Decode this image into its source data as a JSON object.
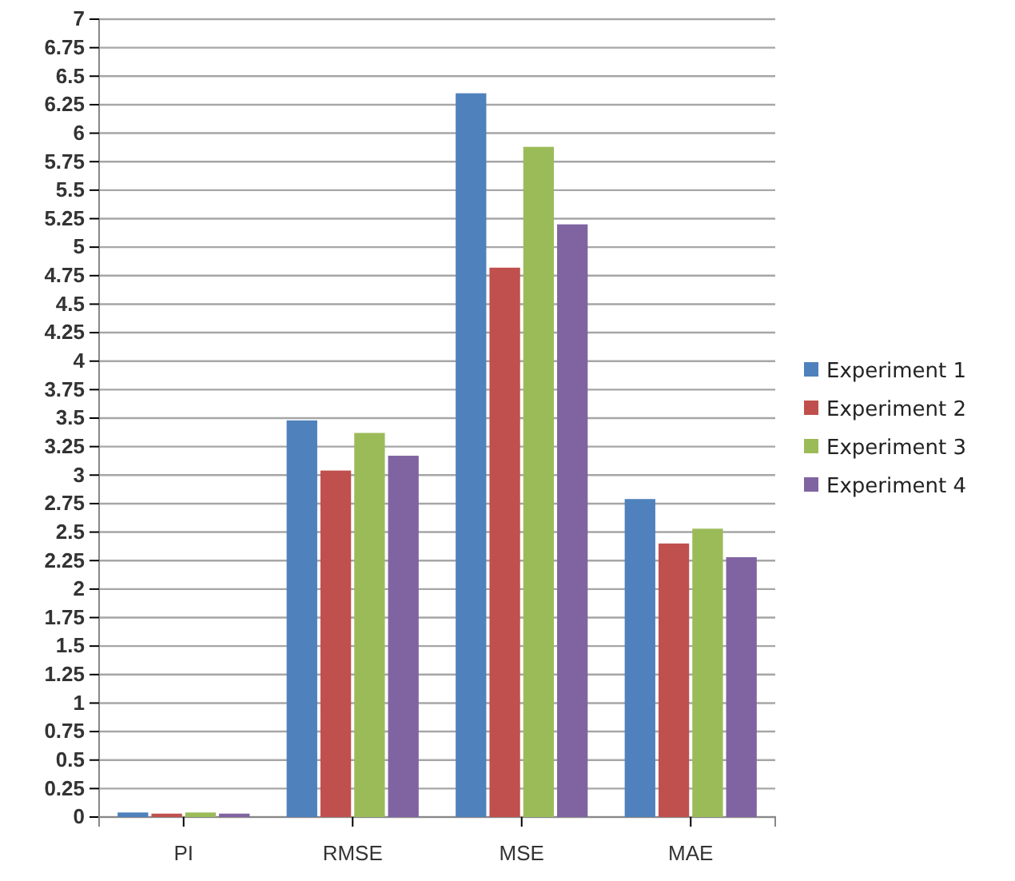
{
  "chart_data": {
    "type": "bar",
    "categories": [
      "PI",
      "RMSE",
      "MSE",
      "MAE"
    ],
    "series": [
      {
        "name": "Experiment 1",
        "color": "#4f81bd",
        "values": [
          0.04,
          3.48,
          6.35,
          2.79
        ]
      },
      {
        "name": "Experiment 2",
        "color": "#c0504d",
        "values": [
          0.03,
          3.04,
          4.82,
          2.4
        ]
      },
      {
        "name": "Experiment 3",
        "color": "#9bbb59",
        "values": [
          0.04,
          3.37,
          5.88,
          2.53
        ]
      },
      {
        "name": "Experiment 4",
        "color": "#8064a2",
        "values": [
          0.03,
          3.17,
          5.2,
          2.28
        ]
      }
    ],
    "ylim": [
      0,
      7
    ],
    "yticks": [
      0,
      0.25,
      0.5,
      0.75,
      1,
      1.25,
      1.5,
      1.75,
      2,
      2.25,
      2.5,
      2.75,
      3,
      3.25,
      3.5,
      3.75,
      4,
      4.25,
      4.5,
      4.75,
      5,
      5.25,
      5.5,
      5.75,
      6,
      6.25,
      6.5,
      6.75,
      7
    ],
    "grid": "y",
    "legend": "right"
  }
}
